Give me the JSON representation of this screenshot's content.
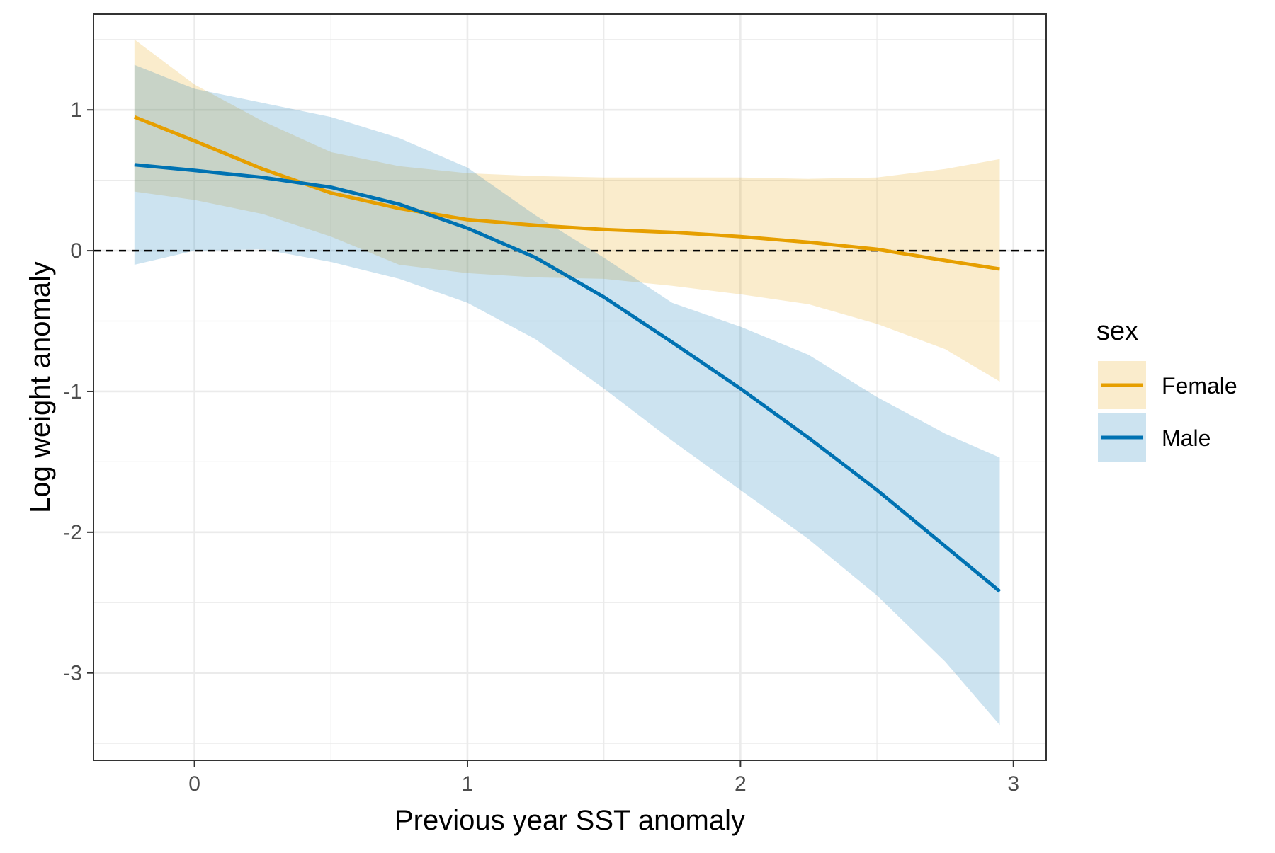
{
  "chart_data": {
    "type": "line",
    "title": "",
    "xlabel": "Previous year SST anomaly",
    "ylabel": "Log weight anomaly",
    "xlim": [
      -0.37,
      3.12
    ],
    "ylim": [
      -3.62,
      1.68
    ],
    "x_ticks": [
      0,
      1,
      2,
      3
    ],
    "y_ticks": [
      1,
      0,
      -1,
      -2,
      -3
    ],
    "x_tick_labels": [
      "0",
      "1",
      "2",
      "3"
    ],
    "y_tick_labels": [
      "1",
      "0",
      "-1",
      "-2",
      "-3"
    ],
    "x_minor_gridlines": [
      0.5,
      1.5,
      2.5
    ],
    "y_minor_gridlines": [
      1.5,
      0.5,
      -0.5,
      -1.5,
      -2.5,
      -3.5
    ],
    "grid": true,
    "reference_line": {
      "y": 0,
      "style": "dashed",
      "color": "#000000"
    },
    "legend": {
      "title": "sex",
      "position": "right"
    },
    "series": [
      {
        "name": "Female",
        "color": "#E69F00",
        "x": [
          -0.22,
          0.0,
          0.25,
          0.5,
          0.75,
          1.0,
          1.25,
          1.5,
          1.75,
          2.0,
          2.25,
          2.5,
          2.75,
          2.95
        ],
        "y": [
          0.95,
          0.78,
          0.58,
          0.41,
          0.3,
          0.22,
          0.18,
          0.15,
          0.13,
          0.1,
          0.06,
          0.01,
          -0.07,
          -0.13
        ],
        "lower": [
          0.42,
          0.36,
          0.26,
          0.1,
          -0.1,
          -0.16,
          -0.19,
          -0.2,
          -0.25,
          -0.31,
          -0.38,
          -0.52,
          -0.7,
          -0.93
        ],
        "upper": [
          1.5,
          1.18,
          0.92,
          0.7,
          0.6,
          0.55,
          0.53,
          0.52,
          0.52,
          0.52,
          0.51,
          0.52,
          0.58,
          0.65
        ]
      },
      {
        "name": "Male",
        "color": "#0072B2",
        "x": [
          -0.22,
          0.0,
          0.25,
          0.5,
          0.75,
          1.0,
          1.25,
          1.5,
          1.75,
          2.0,
          2.25,
          2.5,
          2.75,
          2.95
        ],
        "y": [
          0.61,
          0.57,
          0.52,
          0.45,
          0.33,
          0.16,
          -0.05,
          -0.33,
          -0.65,
          -0.98,
          -1.33,
          -1.7,
          -2.1,
          -2.42
        ],
        "lower": [
          -0.1,
          0.0,
          0.01,
          -0.08,
          -0.2,
          -0.37,
          -0.63,
          -0.98,
          -1.35,
          -1.7,
          -2.05,
          -2.45,
          -2.92,
          -3.37
        ],
        "upper": [
          1.32,
          1.15,
          1.05,
          0.95,
          0.8,
          0.59,
          0.25,
          -0.05,
          -0.37,
          -0.54,
          -0.74,
          -1.04,
          -1.3,
          -1.47
        ]
      }
    ]
  }
}
